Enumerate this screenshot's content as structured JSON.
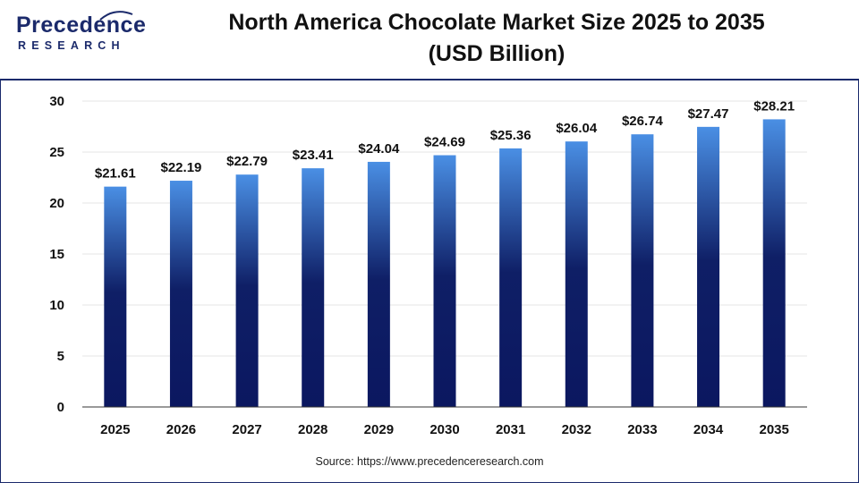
{
  "logo": {
    "brand": "Precedence",
    "sub": "RESEARCH"
  },
  "header": {
    "title_line1": "North America Chocolate Market Size 2025 to 2035",
    "title_line2": "(USD Billion)"
  },
  "footer": {
    "source": "Source: https://www.precedenceresearch.com"
  },
  "colors": {
    "bar_top": "#4a8fe4",
    "bar_mid": "#0f1f66",
    "bar_bottom": "#0b1760",
    "grid": "#e4e4e4",
    "axis": "#333333",
    "brand": "#1b2a6b"
  },
  "chart_data": {
    "type": "bar",
    "title": "North America Chocolate Market Size 2025 to 2035 (USD Billion)",
    "categories": [
      "2025",
      "2026",
      "2027",
      "2028",
      "2029",
      "2030",
      "2031",
      "2032",
      "2033",
      "2034",
      "2035"
    ],
    "values": [
      21.61,
      22.19,
      22.79,
      23.41,
      24.04,
      24.69,
      25.36,
      26.04,
      26.74,
      27.47,
      28.21
    ],
    "data_labels": [
      "$21.61",
      "$22.19",
      "$22.79",
      "$23.41",
      "$24.04",
      "$24.69",
      "$25.36",
      "$26.04",
      "$26.74",
      "$27.47",
      "$28.21"
    ],
    "ylim": [
      0,
      30
    ],
    "yticks": [
      0,
      5,
      10,
      15,
      20,
      25,
      30
    ],
    "grid": true,
    "legend": "none"
  }
}
